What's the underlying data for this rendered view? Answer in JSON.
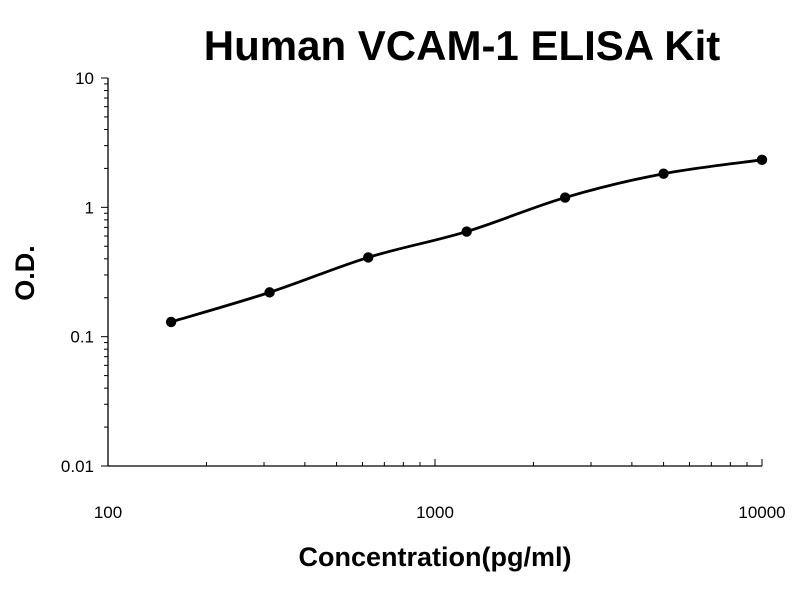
{
  "chart_data": {
    "type": "scatter",
    "title": "Human VCAM-1 ELISA Kit",
    "xlabel": "Concentration(pg/ml)",
    "ylabel": "O.D.",
    "x_scale": "log",
    "y_scale": "log",
    "xlim": [
      100,
      10000
    ],
    "ylim": [
      0.01,
      10
    ],
    "x_ticks": [
      {
        "value": 100,
        "label": "100"
      },
      {
        "value": 1000,
        "label": "1000"
      },
      {
        "value": 10000,
        "label": "10000"
      }
    ],
    "y_ticks": [
      {
        "value": 0.01,
        "label": "0.01"
      },
      {
        "value": 0.1,
        "label": "0.1"
      },
      {
        "value": 1,
        "label": "1"
      },
      {
        "value": 10,
        "label": "10"
      }
    ],
    "grid": false,
    "series": [
      {
        "x": [
          156,
          312,
          625,
          1250,
          2500,
          5000,
          10000
        ],
        "y": [
          0.13,
          0.22,
          0.41,
          0.65,
          1.19,
          1.82,
          2.33
        ]
      }
    ],
    "fit_curve": true,
    "colors": {
      "marker": "#000000",
      "line": "#000000",
      "axis": "#000000"
    }
  }
}
